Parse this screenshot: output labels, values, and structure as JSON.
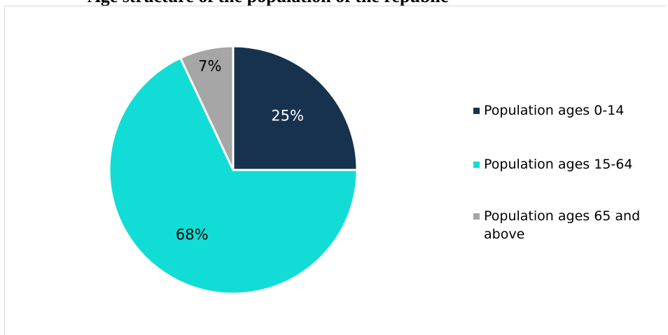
{
  "chart_data": {
    "type": "pie",
    "title": "",
    "categories": [
      "Population ages 0-14",
      "Population ages 15-64",
      "Population ages 65 and above"
    ],
    "values": [
      25,
      68,
      7
    ],
    "labels": [
      "25%",
      "68%",
      "7%"
    ],
    "colors": [
      "#17324f",
      "#12dcd6",
      "#a6a6a6"
    ],
    "label_colors": [
      "#ffffff",
      "#000000",
      "#000000"
    ],
    "start_angle_deg": 0,
    "direction": "clockwise",
    "legend_position": "right"
  },
  "header": {
    "partial_title": "Age structure of the population of the republic"
  }
}
